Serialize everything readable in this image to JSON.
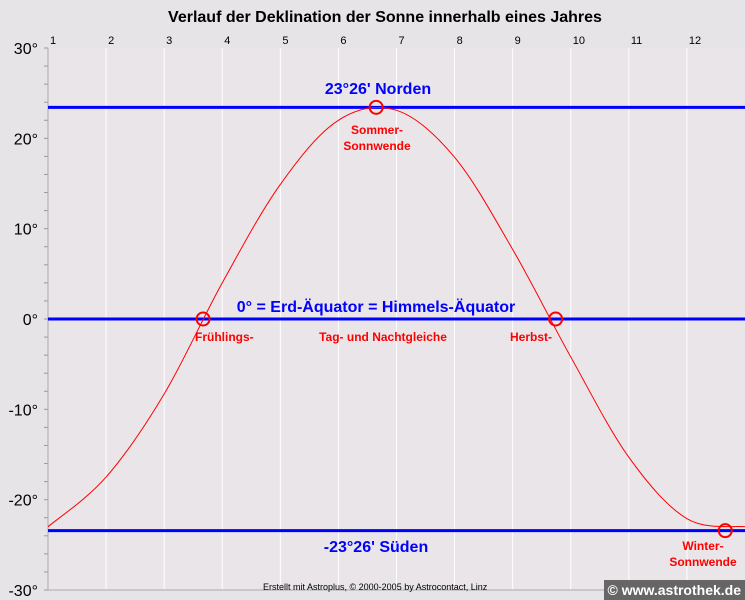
{
  "chart_data": {
    "type": "line",
    "title": "Verlauf der Deklination der Sonne innerhalb eines Jahres",
    "x_tick_labels": [
      "1",
      "2",
      "3",
      "4",
      "5",
      "6",
      "7",
      "8",
      "9",
      "10",
      "11",
      "12"
    ],
    "y_tick_labels": [
      "30°",
      "20°",
      "10°",
      "0°",
      "-10°",
      "-20°",
      "-30°"
    ],
    "y_ticks": [
      30,
      20,
      10,
      0,
      -10,
      -20,
      -30
    ],
    "xlim": [
      1,
      13
    ],
    "ylim": [
      -30,
      30
    ],
    "grid": "vertical",
    "series": [
      {
        "color": "#ff0000",
        "x": [
          1,
          2,
          3,
          4,
          5,
          6,
          7,
          8,
          9,
          10,
          11,
          12,
          13
        ],
        "values": [
          -23.0,
          -17.5,
          -8.3,
          4.0,
          14.9,
          22.0,
          23.1,
          17.9,
          7.7,
          -4.2,
          -15.3,
          -22.1,
          -23.0
        ]
      }
    ],
    "reference_lines": [
      {
        "value": 23.43,
        "label": "23°26'  Norden",
        "color": "#0000ff"
      },
      {
        "value": 0,
        "label": "0°  =  Erd-Äquator  =  Himmels-Äquator",
        "color": "#0000ff"
      },
      {
        "value": -23.43,
        "label": "-23°26'  Süden",
        "color": "#0000ff"
      }
    ],
    "markers": [
      {
        "x": 3.67,
        "y": 0,
        "label": "Frühlings-"
      },
      {
        "x": 6.65,
        "y": 23.43,
        "label": "Sommer-\nSonnwende"
      },
      {
        "x": 9.74,
        "y": 0,
        "label": "Herbst-"
      },
      {
        "x": 12.66,
        "y": -23.43,
        "label": "Winter-\nSonnwende"
      }
    ],
    "annotations": [
      "Tag- und Nachtgleiche"
    ]
  },
  "labels": {
    "sommer1": "Sommer-",
    "sommer2": "Sonnwende",
    "winter1": "Winter-",
    "winter2": "Sonnwende",
    "fruehling": "Frühlings-",
    "herbst": "Herbst-",
    "tag_nacht": "Tag- und Nachtgleiche",
    "nord": "23°26'  Norden",
    "aequator": "0°  =  Erd-Äquator  =  Himmels-Äquator",
    "sued": "-23°26'  Süden"
  },
  "credit": "Erstellt mit Astroplus, © 2000-2005 by Astrocontact, Linz",
  "watermark": "© www.astrothek.de"
}
